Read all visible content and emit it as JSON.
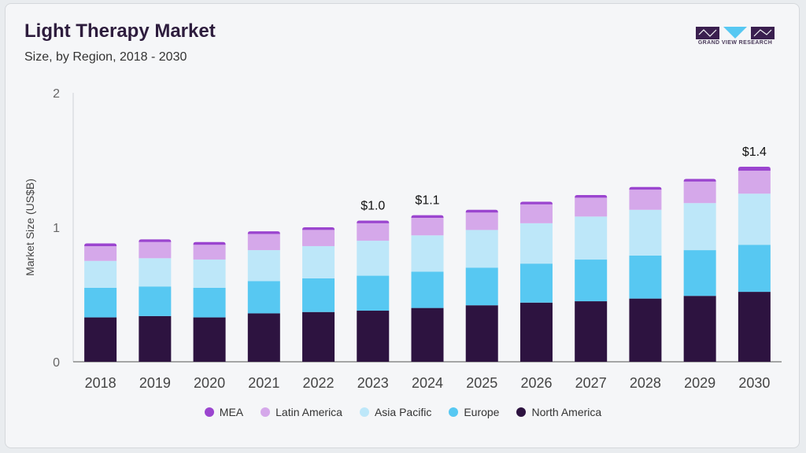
{
  "header": {
    "title": "Light Therapy Market",
    "subtitle": "Size, by Region, 2018 - 2030"
  },
  "logo": {
    "text": "GRAND VIEW RESEARCH"
  },
  "chart_data": {
    "type": "bar",
    "stacked": true,
    "categories": [
      "2018",
      "2019",
      "2020",
      "2021",
      "2022",
      "2023",
      "2024",
      "2025",
      "2026",
      "2027",
      "2028",
      "2029",
      "2030"
    ],
    "series": [
      {
        "name": "North America",
        "color": "#2d1340",
        "values": [
          0.33,
          0.34,
          0.33,
          0.36,
          0.37,
          0.38,
          0.4,
          0.42,
          0.44,
          0.45,
          0.47,
          0.49,
          0.52
        ]
      },
      {
        "name": "Europe",
        "color": "#57c8f2",
        "values": [
          0.22,
          0.22,
          0.22,
          0.24,
          0.25,
          0.26,
          0.27,
          0.28,
          0.29,
          0.31,
          0.32,
          0.34,
          0.35
        ]
      },
      {
        "name": "Asia Pacific",
        "color": "#bde7f9",
        "values": [
          0.2,
          0.21,
          0.21,
          0.23,
          0.24,
          0.26,
          0.27,
          0.28,
          0.3,
          0.32,
          0.34,
          0.35,
          0.38
        ]
      },
      {
        "name": "Latin America",
        "color": "#d5a8ea",
        "values": [
          0.11,
          0.12,
          0.11,
          0.12,
          0.12,
          0.13,
          0.13,
          0.13,
          0.14,
          0.14,
          0.15,
          0.16,
          0.17
        ]
      },
      {
        "name": "MEA",
        "color": "#9b45cf",
        "values": [
          0.02,
          0.02,
          0.02,
          0.02,
          0.02,
          0.02,
          0.02,
          0.02,
          0.02,
          0.02,
          0.02,
          0.02,
          0.03
        ]
      }
    ],
    "legend_order": [
      "MEA",
      "Latin America",
      "Asia Pacific",
      "Europe",
      "North America"
    ],
    "annotations": [
      {
        "category": "2023",
        "label": "$1.0"
      },
      {
        "category": "2024",
        "label": "$1.1"
      },
      {
        "category": "2030",
        "label": "$1.4"
      }
    ],
    "ylabel": "Market Size (US$B)",
    "xlabel": "",
    "ylim": [
      0,
      2
    ],
    "yticks": [
      0,
      1,
      2
    ],
    "grid": false,
    "legend_position": "bottom"
  }
}
